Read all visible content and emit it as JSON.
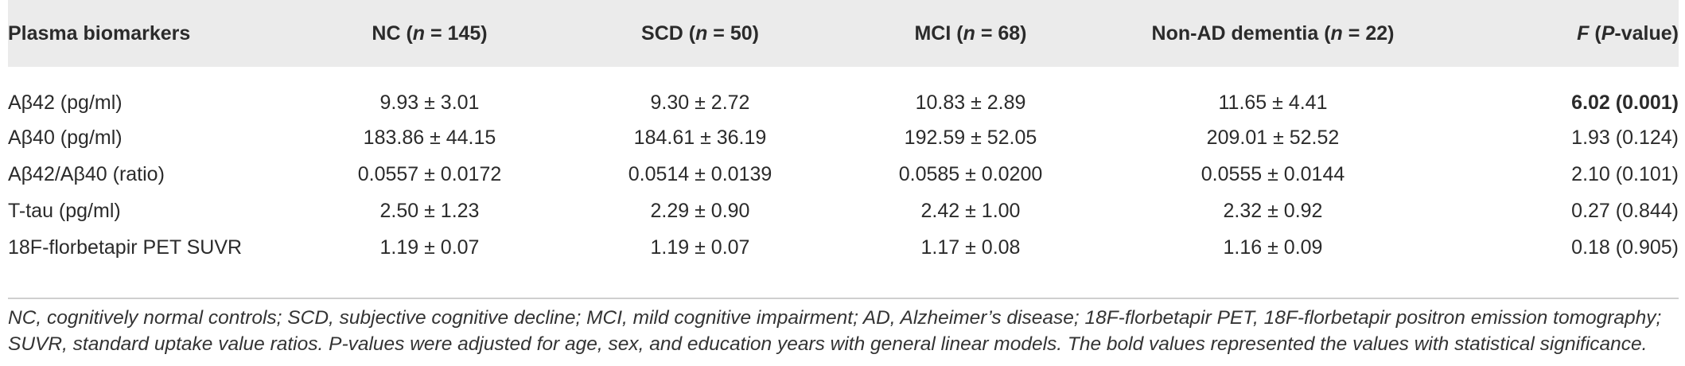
{
  "table": {
    "headers": [
      {
        "pre": "Plasma biomarkers",
        "ital": "",
        "post": ""
      },
      {
        "pre": "NC (",
        "ital": "n",
        "post": " = 145)"
      },
      {
        "pre": "SCD (",
        "ital": "n",
        "post": " = 50)"
      },
      {
        "pre": "MCI (",
        "ital": "n",
        "post": " = 68)"
      },
      {
        "pre": "Non-AD dementia (",
        "ital": "n",
        "post": " = 22)"
      },
      {
        "pre": "",
        "ital": "F",
        "post": " (",
        "ital2": "P",
        "post2": "-value)"
      }
    ],
    "rows": [
      {
        "biomarker": "Aβ42 (pg/ml)",
        "nc": "9.93 ± 3.01",
        "scd": "9.30 ± 2.72",
        "mci": "10.83 ± 2.89",
        "nonad": "11.65 ± 4.41",
        "f": "6.02 (0.001)",
        "f_bold": true
      },
      {
        "biomarker": "Aβ40 (pg/ml)",
        "nc": "183.86 ± 44.15",
        "scd": "184.61 ± 36.19",
        "mci": "192.59 ± 52.05",
        "nonad": "209.01 ± 52.52",
        "f": "1.93 (0.124)",
        "f_bold": false
      },
      {
        "biomarker": "Aβ42/Aβ40 (ratio)",
        "nc": "0.0557 ± 0.0172",
        "scd": "0.0514 ± 0.0139",
        "mci": "0.0585 ± 0.0200",
        "nonad": "0.0555 ± 0.0144",
        "f": "2.10 (0.101)",
        "f_bold": false
      },
      {
        "biomarker": "T-tau (pg/ml)",
        "nc": "2.50 ± 1.23",
        "scd": "2.29 ± 0.90",
        "mci": "2.42 ± 1.00",
        "nonad": "2.32 ± 0.92",
        "f": "0.27 (0.844)",
        "f_bold": false
      },
      {
        "biomarker": "18F-florbetapir PET SUVR",
        "nc": "1.19 ± 0.07",
        "scd": "1.19 ± 0.07",
        "mci": "1.17 ± 0.08",
        "nonad": "1.16 ± 0.09",
        "f": "0.18 (0.905)",
        "f_bold": false
      }
    ]
  },
  "footnote": "NC, cognitively normal controls; SCD, subjective cognitive decline; MCI, mild cognitive impairment; AD, Alzheimer’s disease; 18F-florbetapir PET, 18F-florbetapir positron emission tomography; SUVR, standard uptake value ratios. P-values were adjusted for age, sex, and education years with general linear models. The bold values represented the values with statistical significance.",
  "colors": {
    "header_background": "#ebebeb",
    "text": "#2b2b2b",
    "rule": "#cfcfcf"
  }
}
